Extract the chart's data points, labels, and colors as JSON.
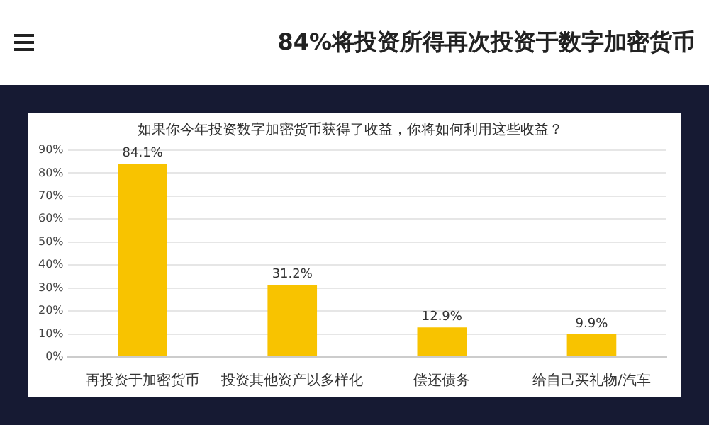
{
  "chart_data": {
    "type": "bar",
    "title": "84%将投资所得再次投资于数字加密货币",
    "subtitle": "如果你今年投资数字加密货币获得了收益，你将如何利用这些收益？",
    "categories": [
      "再投资于加密货币",
      "投资其他资产以多样化",
      "偿还债务",
      "给自己买礼物/汽车"
    ],
    "values": [
      84.1,
      31.2,
      12.9,
      9.9
    ],
    "value_labels": [
      "84.1%",
      "31.2%",
      "12.9%",
      "9.9%"
    ],
    "color": "#f8c300",
    "ylim": [
      0,
      90
    ],
    "yticks": [
      {
        "value": 0,
        "label": "0%"
      },
      {
        "value": 10,
        "label": "10%"
      },
      {
        "value": 20,
        "label": "20%"
      },
      {
        "value": 30,
        "label": "30%"
      },
      {
        "value": 40,
        "label": "40%"
      },
      {
        "value": 50,
        "label": "50%"
      },
      {
        "value": 60,
        "label": "60%"
      },
      {
        "value": 70,
        "label": "70%"
      },
      {
        "value": 80,
        "label": "80%"
      },
      {
        "value": 90,
        "label": "90%"
      }
    ],
    "grid": "y"
  }
}
